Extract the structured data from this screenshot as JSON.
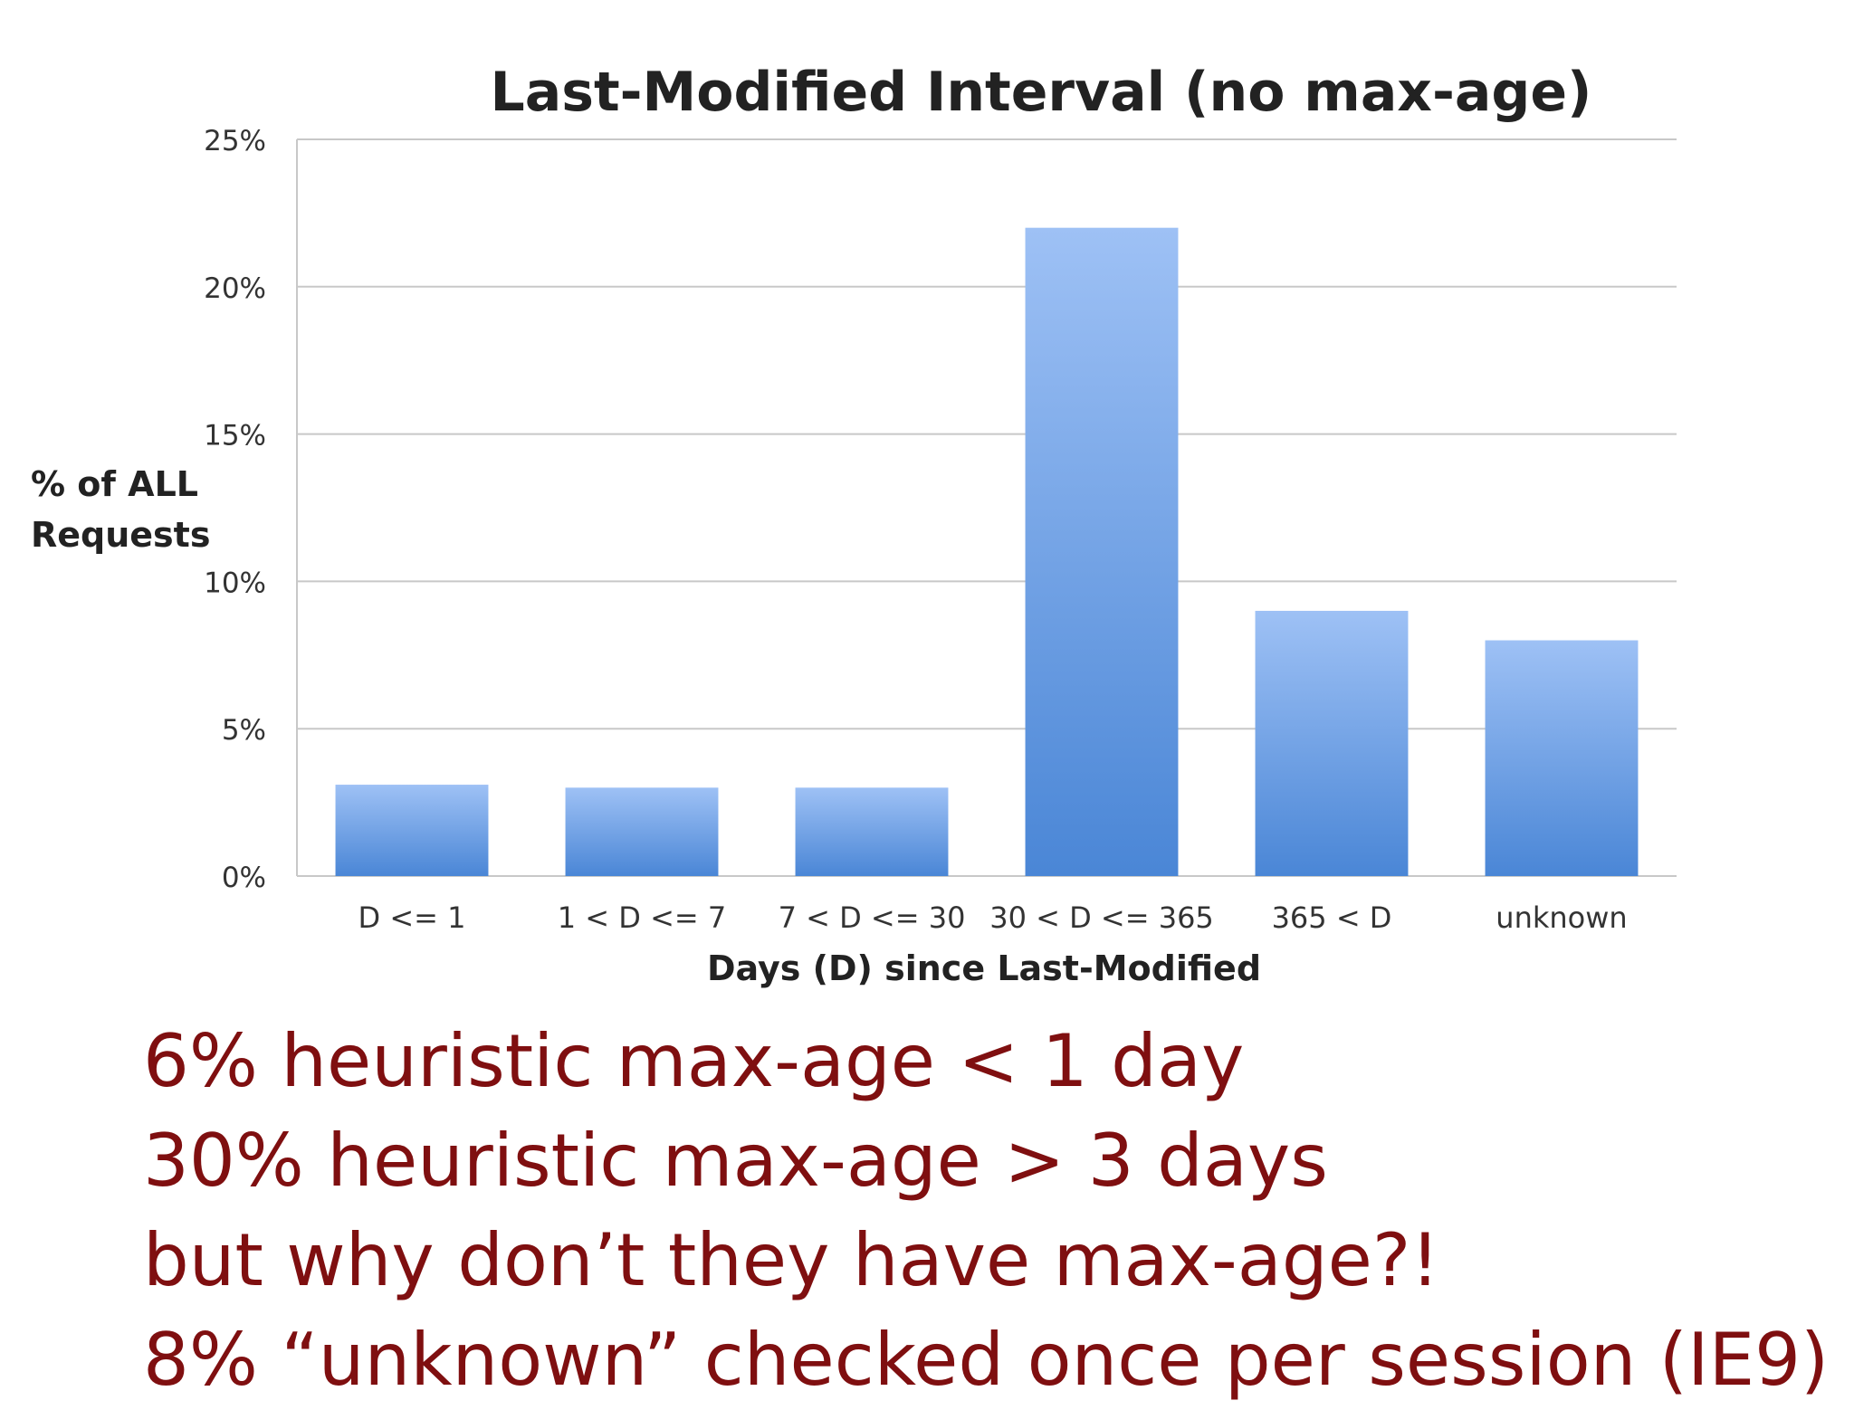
{
  "chart_data": {
    "type": "bar",
    "title": "Last-Modified Interval (no max-age)",
    "xlabel": "Days (D) since Last-Modified",
    "ylabel": "% of ALL Requests",
    "categories": [
      "D <= 1",
      "1 < D <= 7",
      "7 < D <= 30",
      "30 < D <= 365",
      "365 < D",
      "unknown"
    ],
    "values": [
      3.1,
      3.0,
      3.0,
      22.0,
      9.0,
      8.0
    ],
    "ylim": [
      0,
      25
    ],
    "yticks": [
      0,
      5,
      10,
      15,
      20,
      25
    ],
    "ytick_labels": [
      "0%",
      "5%",
      "10%",
      "15%",
      "20%",
      "25%"
    ],
    "grid": true,
    "bar_color_top": "#9ec1f5",
    "bar_color_bottom": "#4a86d6"
  },
  "notes": [
    "6% heuristic max-age < 1 day",
    "30% heuristic max-age > 3 days",
    "but why don’t they have max-age?!",
    "8% “unknown” checked once per session (IE9)"
  ],
  "notes_color": "#7f0f10"
}
